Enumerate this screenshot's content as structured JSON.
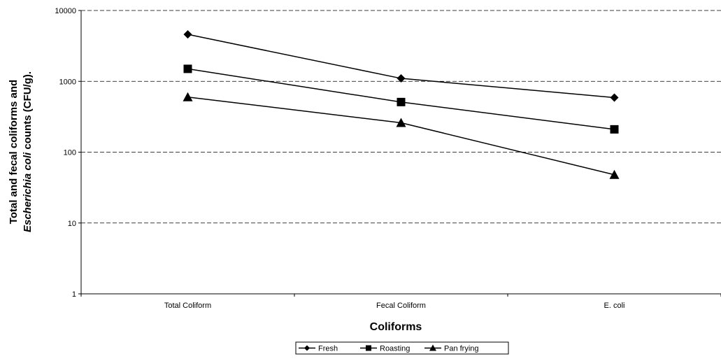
{
  "chart_data": {
    "type": "line",
    "categories": [
      "Total Coliform",
      "Fecal Coliform",
      "E. coli"
    ],
    "series": [
      {
        "name": "Fresh",
        "values": [
          4600,
          1100,
          590
        ],
        "marker": "diamond"
      },
      {
        "name": "Roasting",
        "values": [
          1500,
          510,
          210
        ],
        "marker": "square"
      },
      {
        "name": "Pan frying",
        "values": [
          600,
          260,
          48
        ],
        "marker": "triangle"
      }
    ],
    "xlabel": "Coliforms",
    "ylabel_line1": "Total and fecal coliforms and",
    "ylabel_line2_italic": "Escherichia coli",
    "ylabel_line2_rest": " counts (CFU/g).",
    "yscale": "log",
    "ylim": [
      1,
      10000
    ],
    "yticks": [
      1,
      10,
      100,
      1000,
      10000
    ],
    "ytick_labels": [
      "1",
      "10",
      "100",
      "1000",
      "10000"
    ],
    "grid": true,
    "legend_position": "bottom",
    "colors": {
      "line": "#000000",
      "grid": "#000000"
    }
  }
}
